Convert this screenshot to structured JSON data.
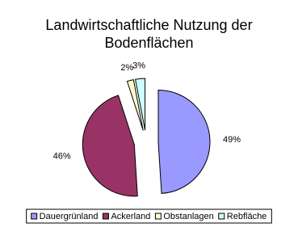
{
  "chart_data": {
    "type": "pie",
    "title": "Landwirtschaftliche Nutzung der Bodenflächen",
    "categories": [
      "Dauergrünland",
      "Ackerland",
      "Obstanlagen",
      "Rebfläche"
    ],
    "values": [
      49,
      46,
      2,
      3
    ],
    "value_labels": [
      "49%",
      "46%",
      "2%",
      "3%"
    ],
    "colors": [
      "#9999ff",
      "#993366",
      "#ffffcc",
      "#ccffff"
    ],
    "legend": "bottom"
  }
}
